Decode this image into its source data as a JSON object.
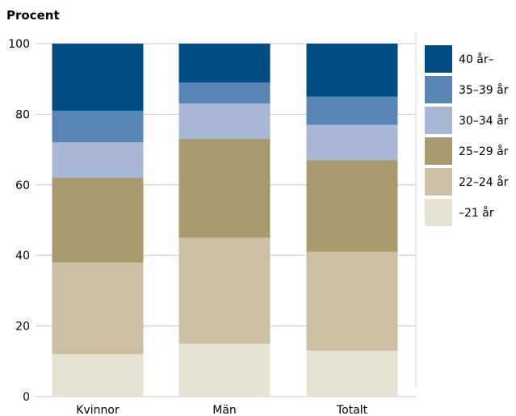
{
  "chart_data": {
    "type": "bar",
    "stacked": true,
    "ylabel": "Procent",
    "xlabel": "",
    "ylim": [
      0,
      100
    ],
    "yticks": [
      "0",
      "20",
      "40",
      "60",
      "80",
      "100"
    ],
    "grid": true,
    "legend_position": "right",
    "categories": [
      "Kvinnor",
      "Män",
      "Totalt"
    ],
    "series": [
      {
        "name": "–21 år",
        "color": "#e7e3d4",
        "values": [
          12,
          15,
          13
        ]
      },
      {
        "name": "22–24 år",
        "color": "#cdbfa3",
        "values": [
          26,
          30,
          28
        ]
      },
      {
        "name": "25–29 år",
        "color": "#a99a6d",
        "values": [
          24,
          28,
          26
        ]
      },
      {
        "name": "30–34 år",
        "color": "#a8b7d3",
        "values": [
          10,
          10,
          10
        ]
      },
      {
        "name": "35–39 år",
        "color": "#5885b3",
        "values": [
          9,
          6,
          8
        ]
      },
      {
        "name": "40 år–",
        "color": "#004d84",
        "values": [
          19,
          11,
          15
        ]
      }
    ]
  }
}
